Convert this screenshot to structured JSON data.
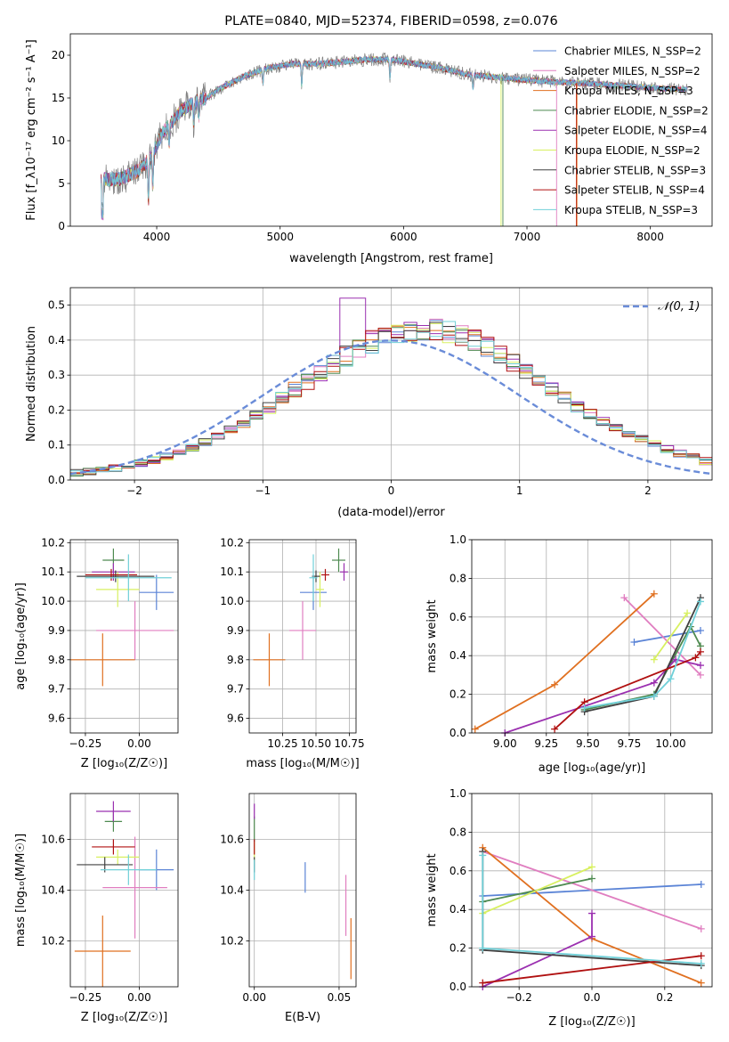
{
  "colors": {
    "chabrier_miles": "#5B84D6",
    "salpeter_miles": "#E07EC0",
    "kroupa_miles": "#E07020",
    "chabrier_elodie": "#4E8A50",
    "salpeter_elodie": "#9B30B0",
    "kroupa_elodie": "#D8F060",
    "chabrier_stelib": "#404040",
    "salpeter_stelib": "#B01010",
    "kroupa_stelib": "#70D0D8",
    "gauss": "#6A8CD8"
  },
  "chart_data": [
    {
      "id": "spectrum",
      "type": "line",
      "title": "PLATE=0840, MJD=52374, FIBERID=0598, z=0.076",
      "xlabel": "wavelength [Angstrom, rest frame]",
      "ylabel": "Flux [f_λ10⁻¹⁷ erg cm⁻² s⁻¹ A⁻¹]",
      "xlim": [
        3300,
        8500
      ],
      "ylim": [
        0,
        22.5
      ],
      "xticks": [
        "4000",
        "5000",
        "6000",
        "7000",
        "8000"
      ],
      "yticks": [
        "0",
        "5",
        "10",
        "15",
        "20"
      ],
      "grid": false,
      "legend_position": "top-right",
      "legend": [
        "Chabrier MILES, N_SSP=2",
        "Salpeter MILES, N_SSP=2",
        "Kroupa MILES, N_SSP=3",
        "Chabrier ELODIE, N_SSP=2",
        "Salpeter ELODIE, N_SSP=4",
        "Kroupa ELODIE, N_SSP=2",
        "Chabrier STELIB, N_SSP=3",
        "Salpeter STELIB, N_SSP=4",
        "Kroupa STELIB, N_SSP=3"
      ],
      "continuum": {
        "x": [
          3550,
          3700,
          3850,
          3950,
          4050,
          4200,
          4300,
          4400,
          4500,
          4700,
          4900,
          5100,
          5300,
          5500,
          5700,
          5900,
          6100,
          6300,
          6500,
          6700,
          6900,
          7100,
          7300,
          7500,
          7700,
          7900,
          8100,
          8300
        ],
        "y": [
          5.5,
          5.5,
          6.5,
          8.0,
          11.0,
          13.5,
          14.5,
          15.0,
          16.0,
          17.5,
          18.5,
          19.0,
          19.0,
          19.2,
          19.5,
          19.5,
          19.0,
          18.5,
          17.8,
          17.5,
          17.2,
          17.0,
          16.8,
          16.7,
          16.5,
          16.3,
          16.1,
          16.0
        ]
      }
    },
    {
      "id": "residuals",
      "type": "line",
      "xlabel": "(data-model)/error",
      "ylabel": "Normed distribution",
      "xlim": [
        -2.5,
        2.5
      ],
      "ylim": [
        0,
        0.55
      ],
      "xticks": [
        "−2",
        "−1",
        "0",
        "1",
        "2"
      ],
      "yticks": [
        "0.0",
        "0.1",
        "0.2",
        "0.3",
        "0.4",
        "0.5"
      ],
      "grid": true,
      "legend_position": "top-right",
      "legend": [
        "𝒩(0, 1)"
      ],
      "reference_curve": "normal(0,1)",
      "histogram_bins": {
        "start": -2.5,
        "width": 0.1
      },
      "base_distribution": [
        0.02,
        0.023,
        0.027,
        0.033,
        0.04,
        0.048,
        0.057,
        0.068,
        0.08,
        0.093,
        0.108,
        0.125,
        0.143,
        0.163,
        0.185,
        0.208,
        0.232,
        0.258,
        0.283,
        0.308,
        0.332,
        0.353,
        0.372,
        0.386,
        0.395,
        0.4,
        0.399,
        0.393,
        0.383,
        0.37,
        0.353,
        0.335,
        0.315,
        0.295,
        0.275,
        0.257,
        0.24,
        0.222,
        0.205,
        0.188,
        0.172,
        0.156,
        0.141,
        0.127,
        0.114,
        0.1,
        0.087,
        0.075,
        0.064,
        0.054
      ]
    },
    {
      "id": "age_vs_Z",
      "type": "scatter",
      "xlabel": "Z [log₁₀(Z/Z☉)]",
      "ylabel": "age [log₁₀(age/yr)]",
      "xlim": [
        -0.32,
        0.18
      ],
      "ylim": [
        9.55,
        10.21
      ],
      "xticks": [
        "−0.25",
        "0.00"
      ],
      "yticks": [
        "9.6",
        "9.7",
        "9.8",
        "9.9",
        "10.0",
        "10.1",
        "10.2"
      ],
      "points": [
        {
          "c": "chabrier_miles",
          "x": 0.08,
          "xerr": 0.08,
          "y": 10.03,
          "yerr": 0.06
        },
        {
          "c": "salpeter_miles",
          "x": -0.02,
          "xerr": 0.18,
          "y": 9.9,
          "yerr": 0.1
        },
        {
          "c": "kroupa_miles",
          "x": -0.17,
          "xerr": 0.15,
          "y": 9.8,
          "yerr": 0.09
        },
        {
          "c": "chabrier_elodie",
          "x": -0.12,
          "xerr": 0.05,
          "y": 10.14,
          "yerr": 0.04
        },
        {
          "c": "salpeter_elodie",
          "x": -0.12,
          "xerr": 0.1,
          "y": 10.1,
          "yerr": 0.03
        },
        {
          "c": "kroupa_elodie",
          "x": -0.1,
          "xerr": 0.1,
          "y": 10.04,
          "yerr": 0.06
        },
        {
          "c": "chabrier_stelib",
          "x": -0.11,
          "xerr": 0.18,
          "y": 10.085,
          "yerr": 0.02
        },
        {
          "c": "salpeter_stelib",
          "x": -0.13,
          "xerr": 0.12,
          "y": 10.09,
          "yerr": 0.02
        },
        {
          "c": "kroupa_stelib",
          "x": -0.05,
          "xerr": 0.2,
          "y": 10.08,
          "yerr": 0.08
        }
      ]
    },
    {
      "id": "age_vs_mass",
      "type": "scatter",
      "xlabel": "mass [log₁₀(M/M☉)]",
      "ylabel": "",
      "xlim": [
        10.0,
        10.8
      ],
      "ylim": [
        9.55,
        10.21
      ],
      "xticks": [
        "10.25",
        "10.50",
        "10.75"
      ],
      "yticks": [
        "9.6",
        "9.7",
        "9.8",
        "9.9",
        "10.0",
        "10.1",
        "10.2"
      ],
      "points": [
        {
          "c": "chabrier_miles",
          "x": 10.48,
          "xerr": 0.1,
          "y": 10.03,
          "yerr": 0.06
        },
        {
          "c": "salpeter_miles",
          "x": 10.4,
          "xerr": 0.1,
          "y": 9.9,
          "yerr": 0.1
        },
        {
          "c": "kroupa_miles",
          "x": 10.15,
          "xerr": 0.12,
          "y": 9.8,
          "yerr": 0.09
        },
        {
          "c": "chabrier_elodie",
          "x": 10.67,
          "xerr": 0.05,
          "y": 10.14,
          "yerr": 0.04
        },
        {
          "c": "salpeter_elodie",
          "x": 10.71,
          "xerr": 0.03,
          "y": 10.1,
          "yerr": 0.03
        },
        {
          "c": "kroupa_elodie",
          "x": 10.53,
          "xerr": 0.03,
          "y": 10.04,
          "yerr": 0.06
        },
        {
          "c": "chabrier_stelib",
          "x": 10.5,
          "xerr": 0.03,
          "y": 10.085,
          "yerr": 0.02
        },
        {
          "c": "salpeter_stelib",
          "x": 10.57,
          "xerr": 0.03,
          "y": 10.09,
          "yerr": 0.02
        },
        {
          "c": "kroupa_stelib",
          "x": 10.48,
          "xerr": 0.03,
          "y": 10.08,
          "yerr": 0.08
        }
      ]
    },
    {
      "id": "weight_vs_age",
      "type": "line",
      "xlabel": "age [log₁₀(age/yr)]",
      "ylabel": "mass weight",
      "xlim": [
        8.8,
        10.25
      ],
      "ylim": [
        0.0,
        1.0
      ],
      "xticks": [
        "9.00",
        "9.25",
        "9.50",
        "9.75",
        "10.00"
      ],
      "yticks": [
        "0.0",
        "0.2",
        "0.4",
        "0.6",
        "0.8",
        "1.0"
      ],
      "grid": true,
      "series": [
        {
          "c": "chabrier_miles",
          "x": [
            9.78,
            10.18
          ],
          "y": [
            0.47,
            0.53
          ]
        },
        {
          "c": "salpeter_miles",
          "x": [
            9.72,
            10.18
          ],
          "y": [
            0.7,
            0.3
          ]
        },
        {
          "c": "kroupa_miles",
          "x": [
            8.82,
            9.3,
            9.9
          ],
          "y": [
            0.02,
            0.25,
            0.72
          ]
        },
        {
          "c": "chabrier_elodie",
          "x": [
            9.48,
            9.9,
            10.12,
            10.18
          ],
          "y": [
            0.12,
            0.2,
            0.55,
            0.45
          ]
        },
        {
          "c": "salpeter_elodie",
          "x": [
            9.0,
            9.9,
            10.03,
            10.18
          ],
          "y": [
            0.0,
            0.26,
            0.38,
            0.35
          ]
        },
        {
          "c": "kroupa_elodie",
          "x": [
            9.9,
            10.1
          ],
          "y": [
            0.38,
            0.62
          ]
        },
        {
          "c": "chabrier_stelib",
          "x": [
            9.48,
            9.9,
            10.18
          ],
          "y": [
            0.11,
            0.19,
            0.7
          ]
        },
        {
          "c": "salpeter_stelib",
          "x": [
            9.3,
            9.48,
            10.15,
            10.18
          ],
          "y": [
            0.02,
            0.16,
            0.39,
            0.42
          ]
        },
        {
          "c": "kroupa_stelib",
          "x": [
            9.48,
            9.9,
            10.0,
            10.18
          ],
          "y": [
            0.13,
            0.19,
            0.28,
            0.68
          ]
        }
      ]
    },
    {
      "id": "mass_vs_Z",
      "type": "scatter",
      "xlabel": "Z [log₁₀(Z/Z☉)]",
      "ylabel": "mass [log₁₀(M/M☉)]",
      "xlim": [
        -0.32,
        0.18
      ],
      "ylim": [
        10.02,
        10.78
      ],
      "xticks": [
        "−0.25",
        "0.00"
      ],
      "yticks": [
        "10.2",
        "10.4",
        "10.6"
      ],
      "points": [
        {
          "c": "chabrier_miles",
          "x": 0.08,
          "xerr": 0.08,
          "y": 10.48,
          "yerr": 0.08
        },
        {
          "c": "salpeter_miles",
          "x": -0.02,
          "xerr": 0.15,
          "y": 10.41,
          "yerr": 0.2
        },
        {
          "c": "kroupa_miles",
          "x": -0.17,
          "xerr": 0.13,
          "y": 10.16,
          "yerr": 0.14
        },
        {
          "c": "chabrier_elodie",
          "x": -0.12,
          "xerr": 0.04,
          "y": 10.67,
          "yerr": 0.04
        },
        {
          "c": "salpeter_elodie",
          "x": -0.12,
          "xerr": 0.08,
          "y": 10.71,
          "yerr": 0.04
        },
        {
          "c": "kroupa_elodie",
          "x": -0.1,
          "xerr": 0.1,
          "y": 10.53,
          "yerr": 0.03
        },
        {
          "c": "chabrier_stelib",
          "x": -0.16,
          "xerr": 0.13,
          "y": 10.5,
          "yerr": 0.03
        },
        {
          "c": "salpeter_stelib",
          "x": -0.12,
          "xerr": 0.1,
          "y": 10.57,
          "yerr": 0.03
        },
        {
          "c": "kroupa_stelib",
          "x": -0.05,
          "xerr": 0.13,
          "y": 10.48,
          "yerr": 0.06
        }
      ]
    },
    {
      "id": "mass_vs_EBV",
      "type": "scatter",
      "xlabel": "E(B-V)",
      "ylabel": "",
      "xlim": [
        -0.003,
        0.06
      ],
      "ylim": [
        10.02,
        10.78
      ],
      "xticks": [
        "0.00",
        "0.05"
      ],
      "yticks": [
        "10.2",
        "10.4",
        "10.6"
      ],
      "points": [
        {
          "c": "chabrier_miles",
          "x": 0.03,
          "xerr": 0,
          "y": 10.45,
          "yerr": 0.06
        },
        {
          "c": "salpeter_miles",
          "x": 0.054,
          "xerr": 0,
          "y": 10.34,
          "yerr": 0.12
        },
        {
          "c": "kroupa_miles",
          "x": 0.057,
          "xerr": 0,
          "y": 10.17,
          "yerr": 0.12
        },
        {
          "c": "chabrier_elodie",
          "x": 0.0,
          "xerr": 0,
          "y": 10.64,
          "yerr": 0.05
        },
        {
          "c": "salpeter_elodie",
          "x": 0.0,
          "xerr": 0,
          "y": 10.71,
          "yerr": 0.03
        },
        {
          "c": "kroupa_elodie",
          "x": 0.0,
          "xerr": 0,
          "y": 10.55,
          "yerr": 0.04
        },
        {
          "c": "chabrier_stelib",
          "x": 0.0,
          "xerr": 0,
          "y": 10.5,
          "yerr": 0.03
        },
        {
          "c": "salpeter_stelib",
          "x": 0.0,
          "xerr": 0,
          "y": 10.57,
          "yerr": 0.03
        },
        {
          "c": "kroupa_stelib",
          "x": 0.0,
          "xerr": 0,
          "y": 10.48,
          "yerr": 0.04
        }
      ]
    },
    {
      "id": "weight_vs_Z",
      "type": "line",
      "xlabel": "Z [log₁₀(Z/Z☉)]",
      "ylabel": "mass weight",
      "xlim": [
        -0.33,
        0.33
      ],
      "ylim": [
        0.0,
        1.0
      ],
      "xticks": [
        "−0.2",
        "0.0",
        "0.2"
      ],
      "yticks": [
        "0.0",
        "0.2",
        "0.4",
        "0.6",
        "0.8",
        "1.0"
      ],
      "grid": true,
      "series": [
        {
          "c": "chabrier_miles",
          "x": [
            -0.3,
            0.3
          ],
          "y": [
            0.47,
            0.53
          ]
        },
        {
          "c": "salpeter_miles",
          "x": [
            -0.3,
            0.3
          ],
          "y": [
            0.7,
            0.3
          ]
        },
        {
          "c": "kroupa_miles",
          "x": [
            -0.3,
            0.0,
            0.3
          ],
          "y": [
            0.72,
            0.25,
            0.02
          ]
        },
        {
          "c": "chabrier_elodie",
          "x": [
            -0.3,
            0.0
          ],
          "y": [
            0.44,
            0.56
          ]
        },
        {
          "c": "salpeter_elodie",
          "x": [
            -0.3,
            0.0,
            0.0
          ],
          "y": [
            0.0,
            0.26,
            0.38
          ]
        },
        {
          "c": "kroupa_elodie",
          "x": [
            -0.3,
            0.0
          ],
          "y": [
            0.38,
            0.62
          ]
        },
        {
          "c": "chabrier_stelib",
          "x": [
            -0.3,
            -0.3,
            0.3
          ],
          "y": [
            0.7,
            0.19,
            0.11
          ]
        },
        {
          "c": "salpeter_stelib",
          "x": [
            -0.3,
            0.3
          ],
          "y": [
            0.02,
            0.16
          ]
        },
        {
          "c": "kroupa_stelib",
          "x": [
            -0.3,
            -0.3,
            0.3
          ],
          "y": [
            0.68,
            0.2,
            0.12
          ]
        }
      ]
    }
  ]
}
